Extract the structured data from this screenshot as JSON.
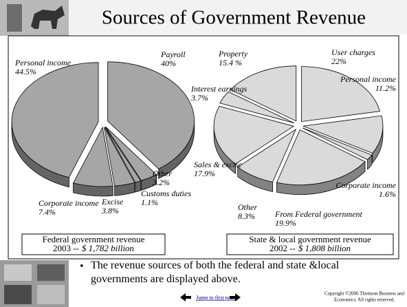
{
  "header": {
    "title": "Sources of Government Revenue"
  },
  "chart_data": [
    {
      "type": "pie",
      "categories": [
        "Payroll",
        "Other",
        "Customs duties",
        "Excise",
        "Corporate income",
        "Personal income"
      ],
      "values": [
        40,
        3.2,
        1.1,
        3.8,
        7.4,
        44.5
      ],
      "value_labels": [
        "40%",
        "3.2%",
        "1.1%",
        "3.8%",
        "7.4%",
        "44.5%"
      ],
      "color": "#a6a6a6",
      "caption": [
        "Federal government revenue",
        "2003 --",
        "$ 1,782 billion"
      ]
    },
    {
      "type": "pie",
      "categories": [
        "User charges",
        "Personal income",
        "Corporate income",
        "From Federal government",
        "Other",
        "Sales & excise",
        "Interest earnings",
        "Property"
      ],
      "values": [
        22,
        11.2,
        1.6,
        19.9,
        8.3,
        17.9,
        3.7,
        15.4
      ],
      "value_labels": [
        "22%",
        "11.2%",
        "1.6%",
        "19.9%",
        "8.3%",
        "17.9%",
        "3.7%",
        "15.4 %"
      ],
      "color": "#dadada",
      "caption": [
        "State & local government revenue",
        "2002 --",
        "$ 1,808 billion"
      ]
    }
  ],
  "bullet": "The revenue sources of both the federal and state &local governments are displayed above.",
  "footer": {
    "link": "Jump to first page",
    "copyright": [
      "Copyright ©2006  Thomson Business and",
      "Economics. All rights reserved."
    ]
  }
}
